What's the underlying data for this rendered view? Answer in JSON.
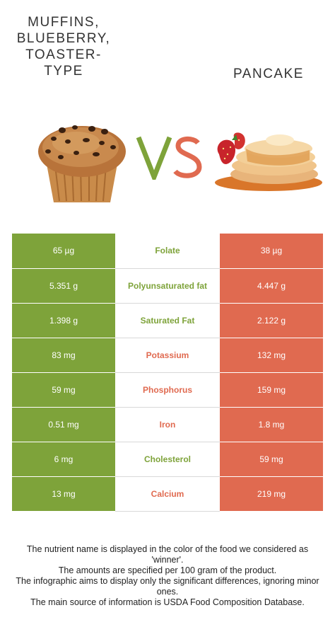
{
  "header": {
    "left_title": "MUFFINS, BLUEBERRY, TOASTER-TYPE",
    "right_title": "PANCAKE",
    "vs_text": "VS"
  },
  "colors": {
    "winner_left": "#7ea33a",
    "winner_right": "#e06a50"
  },
  "rows": [
    {
      "left": "65 µg",
      "nutrient": "Folate",
      "right": "38 µg",
      "winner": "left"
    },
    {
      "left": "5.351 g",
      "nutrient": "Polyunsaturated fat",
      "right": "4.447 g",
      "winner": "left"
    },
    {
      "left": "1.398 g",
      "nutrient": "Saturated Fat",
      "right": "2.122 g",
      "winner": "left"
    },
    {
      "left": "83 mg",
      "nutrient": "Potassium",
      "right": "132 mg",
      "winner": "right"
    },
    {
      "left": "59 mg",
      "nutrient": "Phosphorus",
      "right": "159 mg",
      "winner": "right"
    },
    {
      "left": "0.51 mg",
      "nutrient": "Iron",
      "right": "1.8 mg",
      "winner": "right"
    },
    {
      "left": "6 mg",
      "nutrient": "Cholesterol",
      "right": "59 mg",
      "winner": "left"
    },
    {
      "left": "13 mg",
      "nutrient": "Calcium",
      "right": "219 mg",
      "winner": "right"
    }
  ],
  "notes": [
    "The nutrient name is displayed in the color of the food we considered as 'winner'.",
    "The amounts are specified per 100 gram of the product.",
    "The infographic aims to display only the significant differences, ignoring minor ones.",
    "The main source of information is USDA Food Composition Database."
  ]
}
